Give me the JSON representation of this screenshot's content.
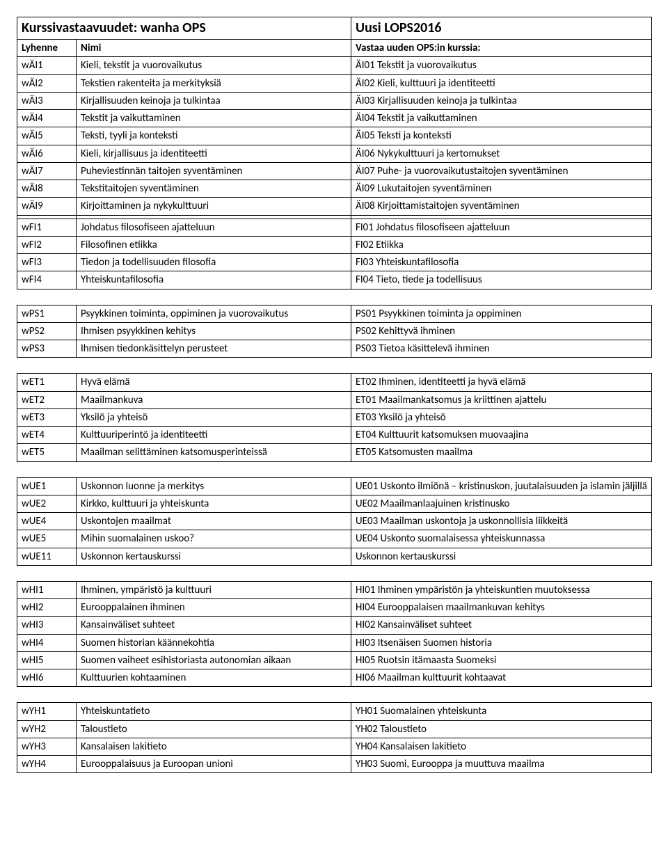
{
  "header": {
    "left_title": "Kurssivastaavuudet: wanha OPS",
    "right_title": "Uusi LOPS2016",
    "col1": "Lyhenne",
    "col2": "Nimi",
    "col3": "Vastaa uuden OPS:in kurssia:"
  },
  "groups": [
    [
      {
        "a": "wÄI1",
        "n": "Kieli, tekstit ja vuorovaikutus",
        "u": "ÄI01 Tekstit ja vuorovaikutus"
      },
      {
        "a": "wÄI2",
        "n": "Tekstien rakenteita ja merkityksiä",
        "u": "ÄI02 Kieli, kulttuuri ja identiteetti"
      },
      {
        "a": "wÄI3",
        "n": "Kirjallisuuden keinoja ja tulkintaa",
        "u": "ÄI03 Kirjallisuuden keinoja ja tulkintaa"
      },
      {
        "a": "wÄI4",
        "n": "Tekstit ja vaikuttaminen",
        "u": "ÄI04 Tekstit ja vaikuttaminen"
      },
      {
        "a": "wÄI5",
        "n": "Teksti, tyyli ja konteksti",
        "u": "ÄI05 Teksti ja konteksti"
      },
      {
        "a": "wÄI6",
        "n": "Kieli, kirjallisuus ja identiteetti",
        "u": "ÄI06 Nykykulttuuri ja kertomukset"
      },
      {
        "a": "wÄI7",
        "n": "Puheviestinnän taitojen syventäminen",
        "u": "ÄI07 Puhe- ja vuorovaikutustaitojen syventäminen"
      },
      {
        "a": "wÄI8",
        "n": "Tekstitaitojen syventäminen",
        "u": "ÄI09 Lukutaitojen syventäminen"
      },
      {
        "a": "wÄI9",
        "n": "Kirjoittaminen ja nykykulttuuri",
        "u": "ÄI08 Kirjoittamistaitojen syventäminen"
      },
      {
        "a": "",
        "n": "",
        "u": ""
      },
      {
        "a": "wFI1",
        "n": "Johdatus filosofiseen ajatteluun",
        "u": "FI01 Johdatus filosofiseen ajatteluun"
      },
      {
        "a": "wFI2",
        "n": "Filosofinen etiikka",
        "u": "FI02 Etiikka"
      },
      {
        "a": "wFI3",
        "n": "Tiedon ja todellisuuden filosofia",
        "u": "FI03 Yhteiskuntafilosofia"
      },
      {
        "a": "wFI4",
        "n": "Yhteiskuntafilosofia",
        "u": "FI04 Tieto, tiede ja todellisuus"
      }
    ],
    [
      {
        "a": "wPS1",
        "n": "Psyykkinen toiminta, oppiminen ja vuorovaikutus",
        "u": "PS01 Psyykkinen toiminta ja oppiminen"
      },
      {
        "a": "wPS2",
        "n": "Ihmisen psyykkinen kehitys",
        "u": "PS02 Kehittyvä ihminen"
      },
      {
        "a": "wPS3",
        "n": "Ihmisen tiedonkäsittelyn perusteet",
        "u": "PS03 Tietoa käsittelevä ihminen"
      }
    ],
    [
      {
        "a": "wET1",
        "n": "Hyvä elämä",
        "u": "ET02 Ihminen, identiteetti ja hyvä elämä"
      },
      {
        "a": "wET2",
        "n": "Maailmankuva",
        "u": "ET01 Maailmankatsomus ja kriittinen ajattelu"
      },
      {
        "a": "wET3",
        "n": "Yksilö ja yhteisö",
        "u": "ET03 Yksilö ja yhteisö"
      },
      {
        "a": "wET4",
        "n": "Kulttuuriperintö ja identiteetti",
        "u": "ET04 Kulttuurit katsomuksen muovaajina"
      },
      {
        "a": "wET5",
        "n": "Maailman selittäminen katsomusperinteissä",
        "u": "ET05 Katsomusten maailma"
      }
    ],
    [
      {
        "a": "wUE1",
        "n": "Uskonnon luonne ja merkitys",
        "u": "UE01 Uskonto ilmiönä – kristinuskon, juutalaisuuden ja islamin jäljillä"
      },
      {
        "a": "wUE2",
        "n": "Kirkko, kulttuuri ja yhteiskunta",
        "u": "UE02 Maailmanlaajuinen kristinusko"
      },
      {
        "a": "wUE4",
        "n": "Uskontojen maailmat",
        "u": "UE03 Maailman uskontoja ja uskonnollisia liikkeitä"
      },
      {
        "a": "wUE5",
        "n": "Mihin suomalainen uskoo?",
        "u": "UE04 Uskonto suomalaisessa yhteiskunnassa"
      },
      {
        "a": "wUE11",
        "n": "Uskonnon kertauskurssi",
        "u": "Uskonnon kertauskurssi"
      }
    ],
    [
      {
        "a": "wHI1",
        "n": "Ihminen, ympäristö ja kulttuuri",
        "u": "HI01 Ihminen ympäristön ja yhteiskuntien muutoksessa"
      },
      {
        "a": "wHI2",
        "n": "Eurooppalainen ihminen",
        "u": "HI04 Eurooppalaisen maailmankuvan kehitys"
      },
      {
        "a": "wHI3",
        "n": "Kansainväliset suhteet",
        "u": "HI02 Kansainväliset suhteet"
      },
      {
        "a": "wHI4",
        "n": "Suomen historian käännekohtia",
        "u": "HI03 Itsenäisen Suomen historia"
      },
      {
        "a": "wHI5",
        "n": "Suomen vaiheet esihistoriasta autonomian aikaan",
        "u": "HI05 Ruotsin itämaasta Suomeksi"
      },
      {
        "a": "wHI6",
        "n": "Kulttuurien kohtaaminen",
        "u": "HI06 Maailman kulttuurit kohtaavat"
      }
    ],
    [
      {
        "a": "wYH1",
        "n": "Yhteiskuntatieto",
        "u": "YH01 Suomalainen yhteiskunta"
      },
      {
        "a": "wYH2",
        "n": "Taloustieto",
        "u": "YH02 Taloustieto"
      },
      {
        "a": "wYH3",
        "n": "Kansalaisen lakitieto",
        "u": "YH04 Kansalaisen lakitieto"
      },
      {
        "a": "wYH4",
        "n": "Eurooppalaisuus ja Euroopan unioni",
        "u": "YH03 Suomi, Eurooppa ja muuttuva maailma"
      }
    ]
  ]
}
